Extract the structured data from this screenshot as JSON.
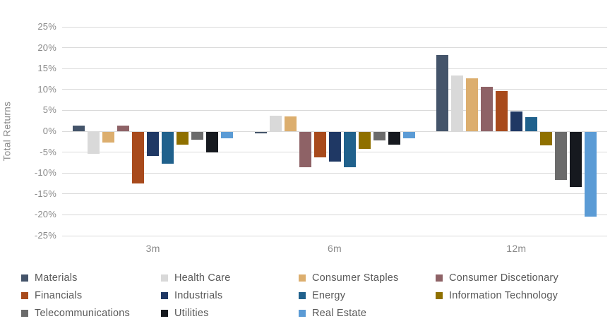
{
  "chart_data": {
    "type": "bar",
    "title": "",
    "ylabel": "Total Returns",
    "xlabel": "",
    "categories": [
      "3m",
      "6m",
      "12m"
    ],
    "ylim": [
      -25,
      25
    ],
    "ytick_step": 5,
    "ytick_labels": [
      "25%",
      "20%",
      "15%",
      "10%",
      "5%",
      "0%",
      "-5%",
      "-10%",
      "-15%",
      "-20%",
      "-25%"
    ],
    "grid": "horizontal",
    "legend_position": "bottom",
    "gridline_color": "#d9d9d9",
    "axis_text_color": "#8a8a8a",
    "legend_text_color": "#595959",
    "series": [
      {
        "name": "Materials",
        "color": "#44546A",
        "values": [
          1.3,
          -0.4,
          18.2
        ]
      },
      {
        "name": "Health Care",
        "color": "#D9D9D9",
        "values": [
          -5.2,
          3.8,
          13.4
        ]
      },
      {
        "name": "Consumer Staples",
        "color": "#DCAE6E",
        "values": [
          -2.6,
          3.5,
          12.6
        ]
      },
      {
        "name": "Consumer Discetionary",
        "color": "#8E6266",
        "values": [
          1.4,
          -8.4,
          10.6
        ]
      },
      {
        "name": "Financials",
        "color": "#A84A1C",
        "values": [
          -12.4,
          -6.0,
          9.7
        ]
      },
      {
        "name": "Industrials",
        "color": "#1F3864",
        "values": [
          -5.8,
          -7.1,
          4.7
        ]
      },
      {
        "name": "Energy",
        "color": "#20618C",
        "values": [
          -7.6,
          -8.4,
          3.3
        ]
      },
      {
        "name": "Information Technology",
        "color": "#8F7000",
        "values": [
          -3.0,
          -4.0,
          -3.2
        ]
      },
      {
        "name": "Telecommunications",
        "color": "#6B6B6B",
        "values": [
          -1.8,
          -2.1,
          -11.5
        ]
      },
      {
        "name": "Utilities",
        "color": "#16191F",
        "values": [
          -4.9,
          -3.1,
          -13.2
        ]
      },
      {
        "name": "Real Estate",
        "color": "#5B9BD5",
        "values": [
          -1.5,
          -1.6,
          -20.2
        ]
      }
    ]
  }
}
